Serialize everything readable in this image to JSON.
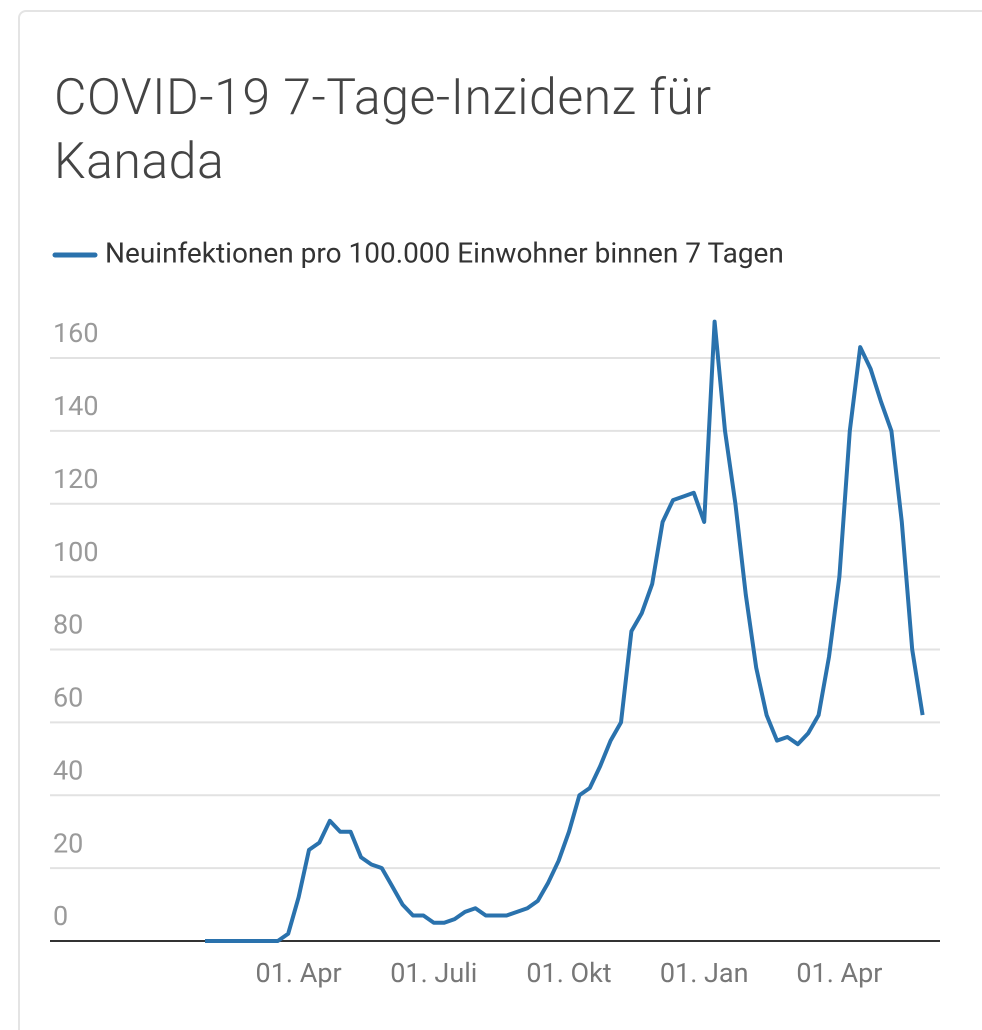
{
  "chart_data": {
    "type": "line",
    "title": "COVID-19 7-Tage-Inzidenz für Kanada",
    "categories": [
      null,
      null,
      null,
      null,
      null,
      null,
      null,
      null,
      null,
      "01. Apr",
      null,
      null,
      null,
      null,
      null,
      null,
      null,
      null,
      null,
      null,
      null,
      null,
      "01. Juli",
      null,
      null,
      null,
      null,
      null,
      null,
      null,
      null,
      null,
      null,
      null,
      null,
      "01. Okt",
      null,
      null,
      null,
      null,
      null,
      null,
      null,
      null,
      null,
      null,
      null,
      null,
      "01. Jan",
      null,
      null,
      null,
      null,
      null,
      null,
      null,
      null,
      null,
      null,
      null,
      null,
      "01. Apr",
      null,
      null,
      null,
      null,
      null,
      null,
      null,
      null
    ],
    "series": [
      {
        "name": "Neuinfektionen pro 100.000 Einwohner binnen 7 Tagen",
        "color": "#2a72ad",
        "values": [
          0,
          0,
          0,
          0,
          0,
          0,
          0,
          0,
          2,
          12,
          25,
          27,
          33,
          30,
          30,
          23,
          21,
          20,
          15,
          10,
          7,
          7,
          5,
          5,
          6,
          8,
          9,
          7,
          7,
          7,
          8,
          9,
          11,
          16,
          22,
          30,
          40,
          42,
          48,
          55,
          60,
          85,
          90,
          98,
          115,
          121,
          122,
          123,
          115,
          170,
          140,
          120,
          95,
          75,
          62,
          55,
          56,
          54,
          57,
          62,
          78,
          100,
          140,
          163,
          157,
          148,
          140,
          115,
          80,
          62
        ]
      }
    ],
    "ylim": [
      0,
      160
    ],
    "yticks": [
      0,
      20,
      40,
      60,
      80,
      100,
      120,
      140,
      160
    ],
    "grid": true,
    "legend": "top"
  }
}
